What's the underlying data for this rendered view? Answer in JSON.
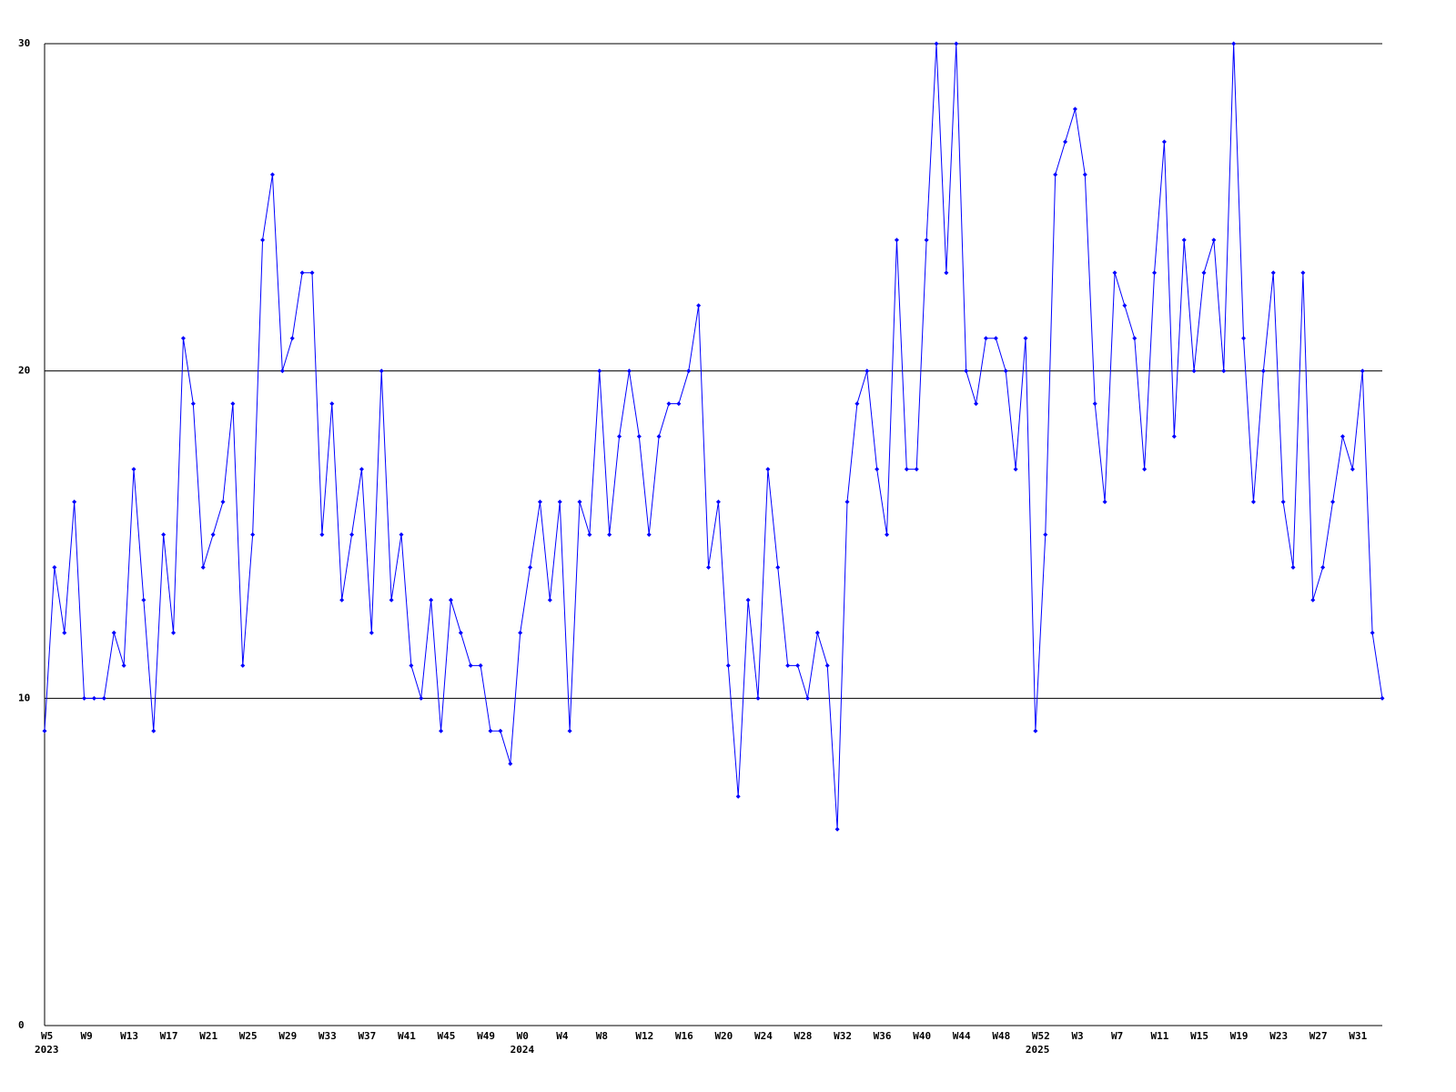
{
  "chart_data": {
    "type": "line",
    "categories": [
      "W5",
      null,
      null,
      null,
      "W9",
      null,
      null,
      null,
      "W13",
      null,
      null,
      null,
      "W17",
      null,
      null,
      null,
      "W21",
      null,
      null,
      null,
      "W25",
      null,
      null,
      null,
      "W29",
      null,
      null,
      null,
      "W33",
      null,
      null,
      null,
      "W37",
      null,
      null,
      null,
      "W41",
      null,
      null,
      null,
      "W45",
      null,
      null,
      null,
      "W49",
      null,
      null,
      null,
      "W0",
      null,
      null,
      null,
      "W4",
      null,
      null,
      null,
      "W8",
      null,
      null,
      null,
      "W12",
      null,
      null,
      null,
      "W16",
      null,
      null,
      null,
      "W20",
      null,
      null,
      null,
      "W24",
      null,
      null,
      null,
      "W28",
      null,
      null,
      null,
      "W32",
      null,
      null,
      null,
      "W36",
      null,
      null,
      null,
      "W40",
      null,
      null,
      null,
      "W44",
      null,
      null,
      null,
      "W48",
      null,
      null,
      null,
      "W52",
      null,
      null,
      null,
      "W3",
      null,
      null,
      null,
      "W7",
      null,
      null,
      null,
      "W11",
      null,
      null,
      null,
      "W15",
      null,
      null,
      null,
      "W19",
      null,
      null,
      null,
      "W23",
      null,
      null,
      null,
      "W27",
      null,
      null,
      null,
      "W31",
      null,
      null,
      null
    ],
    "years": [
      "2023",
      null,
      null,
      null,
      null,
      null,
      null,
      null,
      null,
      null,
      null,
      null,
      null,
      null,
      null,
      null,
      null,
      null,
      null,
      null,
      null,
      null,
      null,
      null,
      null,
      null,
      null,
      null,
      null,
      null,
      null,
      null,
      null,
      null,
      null,
      null,
      null,
      null,
      null,
      null,
      null,
      null,
      null,
      null,
      null,
      null,
      null,
      null,
      "2024",
      null,
      null,
      null,
      null,
      null,
      null,
      null,
      null,
      null,
      null,
      null,
      null,
      null,
      null,
      null,
      null,
      null,
      null,
      null,
      null,
      null,
      null,
      null,
      null,
      null,
      null,
      null,
      null,
      null,
      null,
      null,
      null,
      null,
      null,
      null,
      null,
      null,
      null,
      null,
      null,
      null,
      null,
      null,
      null,
      null,
      null,
      null,
      null,
      null,
      null,
      null,
      "2025",
      null,
      null,
      null,
      null,
      null,
      null,
      null,
      null,
      null,
      null,
      null,
      null,
      null,
      null,
      null,
      null,
      null,
      null,
      null,
      null,
      null,
      null,
      null,
      null,
      null,
      null,
      null,
      null,
      null,
      null,
      null,
      null,
      null,
      null
    ],
    "series": [
      {
        "color": "#0000ff",
        "values": [
          9,
          14,
          12,
          16,
          10,
          10,
          10,
          12,
          11,
          17,
          13,
          9,
          15,
          12,
          21,
          19,
          14,
          15,
          16,
          19,
          11,
          15,
          24,
          26,
          20,
          21,
          23,
          23,
          15,
          19,
          13,
          15,
          17,
          12,
          20,
          13,
          15,
          11,
          10,
          13,
          9,
          13,
          12,
          11,
          11,
          9,
          9,
          8,
          12,
          14,
          16,
          13,
          16,
          9,
          16,
          15,
          20,
          15,
          18,
          20,
          18,
          15,
          18,
          19,
          19,
          20,
          22,
          14,
          16,
          11,
          7,
          13,
          10,
          17,
          14,
          11,
          11,
          10,
          12,
          11,
          6,
          16,
          19,
          20,
          17,
          15,
          24,
          17,
          17,
          24,
          30,
          23,
          30,
          20,
          19,
          21,
          21,
          20,
          17,
          21,
          9,
          15,
          26,
          27,
          28,
          26,
          19,
          16,
          23,
          22,
          21,
          17,
          23,
          27,
          18,
          24,
          20,
          23,
          24,
          20,
          30,
          21,
          16,
          20,
          23,
          16,
          14,
          23,
          13,
          14,
          16,
          18,
          17,
          20,
          12,
          10
        ]
      }
    ],
    "ylim": [
      0,
      30
    ],
    "yticks": [
      0,
      10,
      20,
      30
    ],
    "grid": true
  }
}
